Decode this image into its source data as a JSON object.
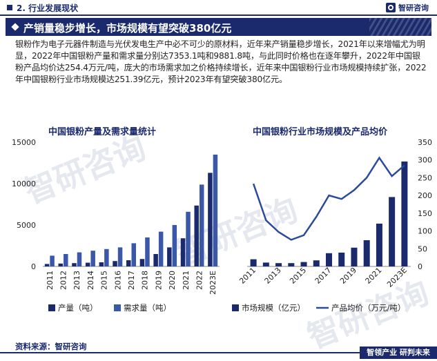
{
  "header": {
    "section_title": "2. 行业发展现状",
    "logo_text": "智研咨询"
  },
  "banner": {
    "title": "产销量稳步增长，市场规模有望突破380亿元"
  },
  "paragraph": "银粉作为电子元器件制造与光伏发电生产中必不可少的原材料，近年来产销量稳步增长，2021年以来增幅尤为明显，2022年中国银粉产量和需求量分别达7353.1吨和9881.8吨，与此同时价格也在逐年攀升，2022年中国银粉产品均价达254.4万元/吨，庞大的市场需求加之价格持续增长，近年来中国银粉行业市场规模持续扩张，2022年中国银粉行业市场规模达251.39亿元，预计2023年有望突破380亿元。",
  "footer": {
    "source": "资料来源：智研咨询",
    "tag": "智领产业  研判未来"
  },
  "watermark": "智研咨询",
  "chart_data": [
    {
      "type": "bar",
      "title": "中国银粉产量及需求量统计",
      "categories": [
        "2011",
        "2012",
        "2013",
        "2014",
        "2015",
        "2016",
        "2017",
        "2018",
        "2019",
        "2020",
        "2021",
        "2022",
        "2023E"
      ],
      "series": [
        {
          "name": "产量（吨）",
          "color": "#1a2a6c",
          "values": [
            300,
            350,
            400,
            450,
            500,
            650,
            750,
            900,
            1500,
            2300,
            3400,
            7353.1,
            11300
          ]
        },
        {
          "name": "需求量（吨）",
          "color": "#3a57a8",
          "values": [
            1300,
            1500,
            1700,
            1900,
            2100,
            2300,
            2800,
            3500,
            4200,
            5000,
            6600,
            9881.8,
            13500
          ]
        }
      ],
      "yticks": [
        "0",
        "5000",
        "10000",
        "15000"
      ],
      "ylim": [
        0,
        15000
      ],
      "legend": "bottom"
    },
    {
      "type": "bar+line",
      "title": "中国银粉行业市场规模及产品均价",
      "categories": [
        "2011",
        "2012",
        "2013",
        "2014",
        "2015",
        "2016",
        "2017",
        "2018",
        "2019",
        "2020",
        "2021",
        "2022",
        "2023E"
      ],
      "xtick_labels": [
        "2011",
        "2013",
        "2015",
        "2017",
        "2019",
        "2021",
        "2023E"
      ],
      "bar_series": {
        "name": "市场规模（亿元）",
        "color": "#1a2a6c",
        "values": [
          26,
          14,
          12,
          12,
          16,
          22,
          48,
          50,
          68,
          95,
          155,
          251.39,
          380
        ]
      },
      "line_series": {
        "name": "产品均价（万元/吨）",
        "color": "#2a4a9a",
        "values": [
          233,
          130,
          97,
          75,
          88,
          140,
          200,
          190,
          215,
          250,
          306,
          254.4,
          285
        ]
      },
      "yticks_right": [
        "0",
        "50",
        "100",
        "150",
        "200",
        "250",
        "300",
        "350"
      ],
      "ylim_right": [
        0,
        350
      ],
      "ylim_bar": [
        0,
        450
      ],
      "legend": "bottom"
    }
  ]
}
